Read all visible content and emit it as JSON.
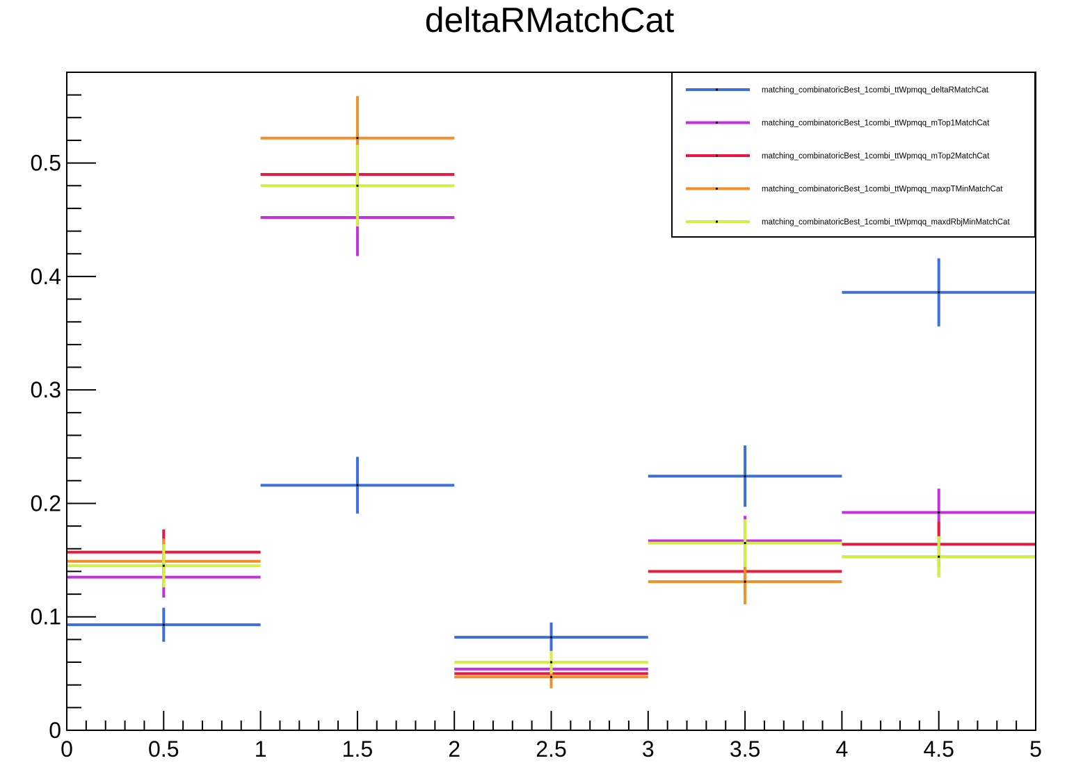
{
  "chart_data": {
    "type": "histogram",
    "title": "deltaRMatchCat",
    "xlabel": "",
    "ylabel": "",
    "xlim": [
      0,
      5
    ],
    "ylim": [
      0,
      0.58
    ],
    "grid": false,
    "legend_position": "top-right",
    "bins": [
      [
        0,
        1
      ],
      [
        1,
        2
      ],
      [
        2,
        3
      ],
      [
        3,
        4
      ],
      [
        4,
        5
      ]
    ],
    "x_centers": [
      0.5,
      1.5,
      2.5,
      3.5,
      4.5
    ],
    "x_ticks": [
      0,
      0.5,
      1,
      1.5,
      2,
      2.5,
      3,
      3.5,
      4,
      4.5,
      5
    ],
    "x_tick_labels": [
      "0",
      "0.5",
      "1",
      "1.5",
      "2",
      "2.5",
      "3",
      "3.5",
      "4",
      "4.5",
      "5"
    ],
    "y_ticks": [
      0,
      0.1,
      0.2,
      0.3,
      0.4,
      0.5
    ],
    "y_tick_labels": [
      "0",
      "0.1",
      "0.2",
      "0.3",
      "0.4",
      "0.5"
    ],
    "series": [
      {
        "name": "matching_combinatoricBest_1combi_ttWpmqq_deltaRMatchCat",
        "color": "#3c6ee0",
        "values": [
          0.093,
          0.216,
          0.082,
          0.224,
          0.386
        ],
        "errors": [
          0.015,
          0.025,
          0.013,
          0.027,
          0.03
        ]
      },
      {
        "name": "matching_combinatoricBest_1combi_ttWpmqq_mTop1MatchCat",
        "color": "#c430e0",
        "values": [
          0.135,
          0.452,
          0.054,
          0.167,
          0.192
        ],
        "errors": [
          0.018,
          0.034,
          0.01,
          0.022,
          0.021
        ]
      },
      {
        "name": "matching_combinatoricBest_1combi_ttWpmqq_mTop2MatchCat",
        "color": "#e81a40",
        "values": [
          0.157,
          0.49,
          0.05,
          0.14,
          0.164
        ],
        "errors": [
          0.02,
          0.035,
          0.01,
          0.02,
          0.02
        ]
      },
      {
        "name": "matching_combinatoricBest_1combi_ttWpmqq_maxpTMinMatchCat",
        "color": "#f0902c",
        "values": [
          0.149,
          0.522,
          0.047,
          0.131,
          0.153
        ],
        "errors": [
          0.02,
          0.037,
          0.01,
          0.02,
          0.018
        ]
      },
      {
        "name": "matching_combinatoricBest_1combi_ttWpmqq_maxdRbjMinMatchCat",
        "color": "#d4ee44",
        "values": [
          0.145,
          0.48,
          0.06,
          0.165,
          0.153
        ],
        "errors": [
          0.019,
          0.036,
          0.01,
          0.021,
          0.018
        ]
      }
    ]
  }
}
